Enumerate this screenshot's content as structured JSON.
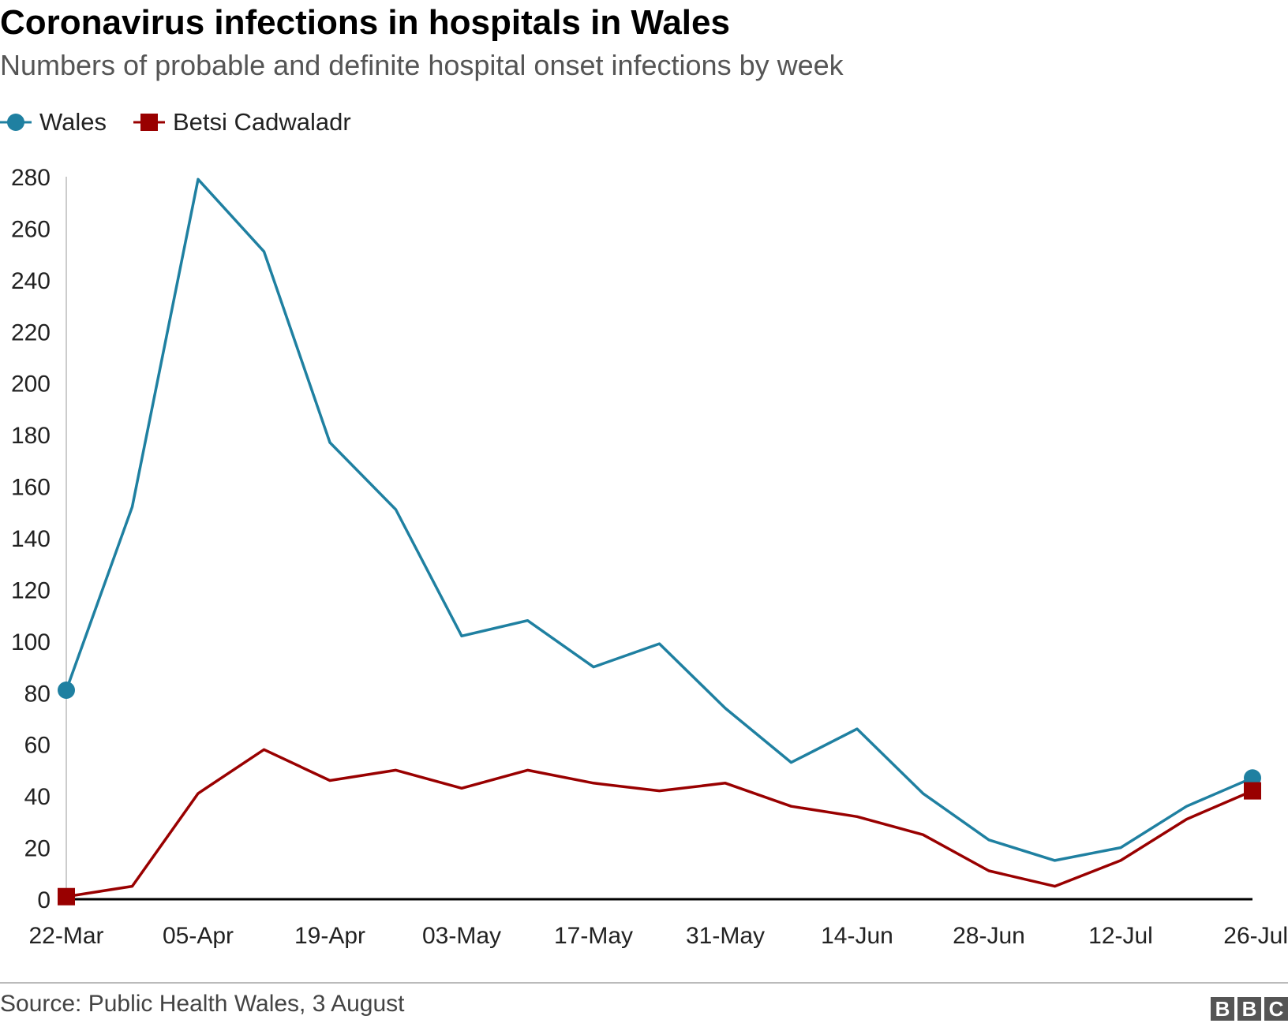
{
  "title": "Coronavirus infections in hospitals in Wales",
  "subtitle": "Numbers of probable and definite hospital onset infections by week",
  "source": "Source: Public Health Wales, 3 August",
  "logo": [
    "B",
    "B",
    "C"
  ],
  "colors": {
    "wales": "#1f80a1",
    "betsi": "#990000",
    "axis": "#000000",
    "tick_text": "#222222"
  },
  "chart_data": {
    "type": "line",
    "title": "Coronavirus infections in hospitals in Wales",
    "subtitle": "Numbers of probable and definite hospital onset infections by week",
    "x": [
      "22-Mar",
      "29-Mar",
      "05-Apr",
      "12-Apr",
      "19-Apr",
      "26-Apr",
      "03-May",
      "10-May",
      "17-May",
      "24-May",
      "31-May",
      "07-Jun",
      "14-Jun",
      "21-Jun",
      "28-Jun",
      "05-Jul",
      "12-Jul",
      "19-Jul",
      "26-Jul"
    ],
    "x_tick_labels": [
      "22-Mar",
      "05-Apr",
      "19-Apr",
      "03-May",
      "17-May",
      "31-May",
      "14-Jun",
      "28-Jun",
      "12-Jul",
      "26-Jul"
    ],
    "y_ticks": [
      0,
      20,
      40,
      60,
      80,
      100,
      120,
      140,
      160,
      180,
      200,
      220,
      240,
      260,
      280
    ],
    "ylim": [
      0,
      280
    ],
    "xlabel": "",
    "ylabel": "",
    "legend_position": "top-left",
    "grid": false,
    "series": [
      {
        "name": "Wales",
        "marker": "circle",
        "color": "#1f80a1",
        "values": [
          81,
          152,
          279,
          251,
          177,
          151,
          102,
          108,
          90,
          99,
          74,
          53,
          66,
          41,
          23,
          15,
          20,
          36,
          47
        ]
      },
      {
        "name": "Betsi Cadwaladr",
        "marker": "square",
        "color": "#990000",
        "values": [
          1,
          5,
          41,
          58,
          46,
          50,
          43,
          50,
          45,
          42,
          45,
          36,
          32,
          25,
          11,
          5,
          15,
          31,
          42
        ]
      }
    ]
  }
}
